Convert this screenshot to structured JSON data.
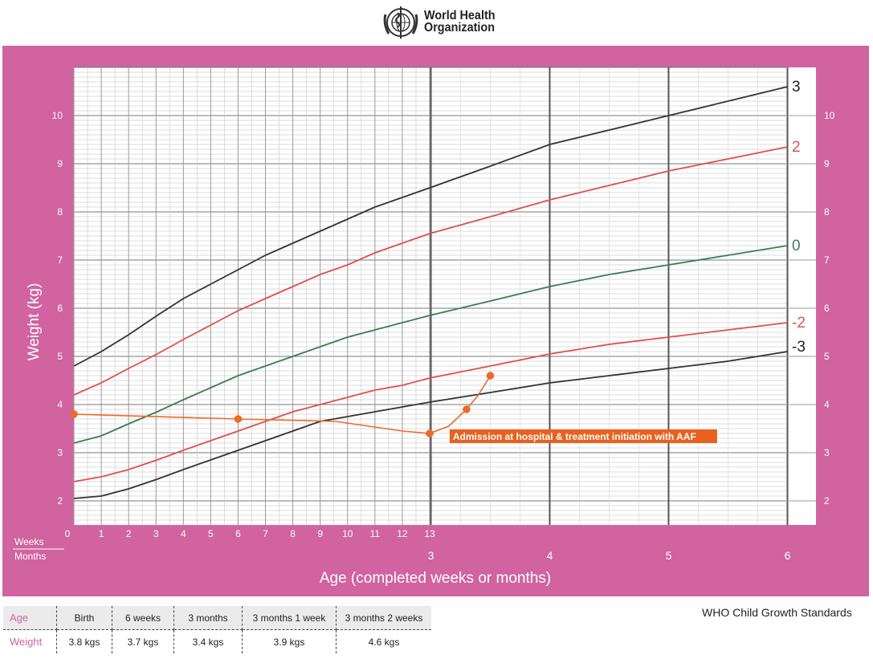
{
  "organization": {
    "line1": "World Health",
    "line2": "Organization",
    "logo": "who-emblem-icon"
  },
  "footer": {
    "standards": "WHO Child Growth Standards"
  },
  "colors": {
    "frame": "#d063a0",
    "black_line": "#333333",
    "red_line": "#e0504a",
    "green_line": "#3b7d57",
    "child_line": "#ec6a2a",
    "annotation_bg": "#e8611f"
  },
  "chart_data": {
    "type": "line",
    "title": "",
    "xlabel": "Age (completed weeks or months)",
    "ylabel": "Weight (kg)",
    "x_unit_labels": {
      "weeks": "Weeks",
      "months": "Months"
    },
    "xlim_months": [
      0,
      6
    ],
    "ylim": [
      1.5,
      11.0
    ],
    "y_ticks": [
      2,
      3,
      4,
      5,
      6,
      7,
      8,
      9,
      10
    ],
    "week_ticks": [
      "0",
      "1",
      "2",
      "3",
      "4",
      "5",
      "6",
      "7",
      "8",
      "9",
      "10",
      "11",
      "12",
      "13"
    ],
    "month_ticks": [
      {
        "label": "3",
        "x": 3
      },
      {
        "label": "4",
        "x": 4
      },
      {
        "label": "5",
        "x": 5
      },
      {
        "label": "6",
        "x": 6
      }
    ],
    "series": [
      {
        "name": "3",
        "color": "#333333",
        "x": [
          0,
          0.23,
          0.46,
          0.7,
          0.92,
          1.15,
          1.38,
          1.61,
          1.84,
          2.07,
          2.3,
          2.53,
          2.76,
          2.99,
          3.5,
          4.0,
          4.5,
          5.0,
          5.5,
          6.0
        ],
        "y": [
          4.8,
          5.1,
          5.45,
          5.85,
          6.2,
          6.5,
          6.8,
          7.1,
          7.35,
          7.6,
          7.85,
          8.1,
          8.3,
          8.5,
          8.95,
          9.4,
          9.7,
          10.0,
          10.3,
          10.6
        ]
      },
      {
        "name": "2",
        "color": "#e0504a",
        "x": [
          0,
          0.23,
          0.46,
          0.7,
          0.92,
          1.15,
          1.38,
          1.61,
          1.84,
          2.07,
          2.3,
          2.53,
          2.76,
          2.99,
          3.5,
          4.0,
          4.5,
          5.0,
          5.5,
          6.0
        ],
        "y": [
          4.2,
          4.45,
          4.75,
          5.05,
          5.35,
          5.65,
          5.95,
          6.2,
          6.45,
          6.7,
          6.9,
          7.15,
          7.35,
          7.55,
          7.9,
          8.25,
          8.55,
          8.85,
          9.1,
          9.35
        ]
      },
      {
        "name": "0",
        "color": "#3b7d57",
        "x": [
          0,
          0.23,
          0.46,
          0.7,
          0.92,
          1.15,
          1.38,
          1.61,
          1.84,
          2.07,
          2.3,
          2.53,
          2.76,
          2.99,
          3.5,
          4.0,
          4.5,
          5.0,
          5.5,
          6.0
        ],
        "y": [
          3.2,
          3.35,
          3.6,
          3.85,
          4.1,
          4.35,
          4.6,
          4.8,
          5.0,
          5.2,
          5.4,
          5.55,
          5.7,
          5.85,
          6.15,
          6.45,
          6.7,
          6.9,
          7.1,
          7.3
        ]
      },
      {
        "name": "-2",
        "color": "#e0504a",
        "x": [
          0,
          0.23,
          0.46,
          0.7,
          0.92,
          1.15,
          1.38,
          1.61,
          1.84,
          2.07,
          2.3,
          2.53,
          2.76,
          2.99,
          3.5,
          4.0,
          4.5,
          5.0,
          5.5,
          6.0
        ],
        "y": [
          2.4,
          2.5,
          2.65,
          2.85,
          3.05,
          3.25,
          3.45,
          3.65,
          3.85,
          4.0,
          4.15,
          4.3,
          4.4,
          4.55,
          4.8,
          5.05,
          5.25,
          5.4,
          5.55,
          5.7
        ]
      },
      {
        "name": "-3",
        "color": "#333333",
        "x": [
          0,
          0.23,
          0.46,
          0.7,
          0.92,
          1.15,
          1.38,
          1.61,
          1.84,
          2.07,
          2.3,
          2.53,
          2.76,
          2.99,
          3.5,
          4.0,
          4.5,
          5.0,
          5.5,
          6.0
        ],
        "y": [
          2.05,
          2.1,
          2.25,
          2.45,
          2.65,
          2.85,
          3.05,
          3.25,
          3.45,
          3.65,
          3.75,
          3.85,
          3.95,
          4.05,
          4.25,
          4.45,
          4.6,
          4.75,
          4.9,
          5.1
        ]
      }
    ],
    "child_series": {
      "name": "Child weight",
      "color": "#ec6a2a",
      "line_x": [
        0,
        1.38,
        2.2,
        2.76,
        2.99,
        3.15,
        3.3,
        3.4,
        3.5
      ],
      "line_y": [
        3.8,
        3.7,
        3.65,
        3.45,
        3.4,
        3.55,
        3.9,
        4.2,
        4.6
      ],
      "points_x": [
        0,
        1.38,
        2.99,
        3.3,
        3.5
      ],
      "points_y": [
        3.8,
        3.7,
        3.4,
        3.9,
        4.6
      ]
    },
    "annotation": {
      "text": "Admission at hospital & treatment initiation with AAF",
      "x": 3.05,
      "y": 3.4
    }
  },
  "table": {
    "age_label": "Age",
    "weight_label": "Weight",
    "ages": [
      "Birth",
      "6 weeks",
      "3 months",
      "3 months 1 week",
      "3 months 2 weeks"
    ],
    "weights": [
      "3.8 kgs",
      "3.7 kgs",
      "3.4 kgs",
      "3.9 kgs",
      "4.6 kgs"
    ]
  }
}
